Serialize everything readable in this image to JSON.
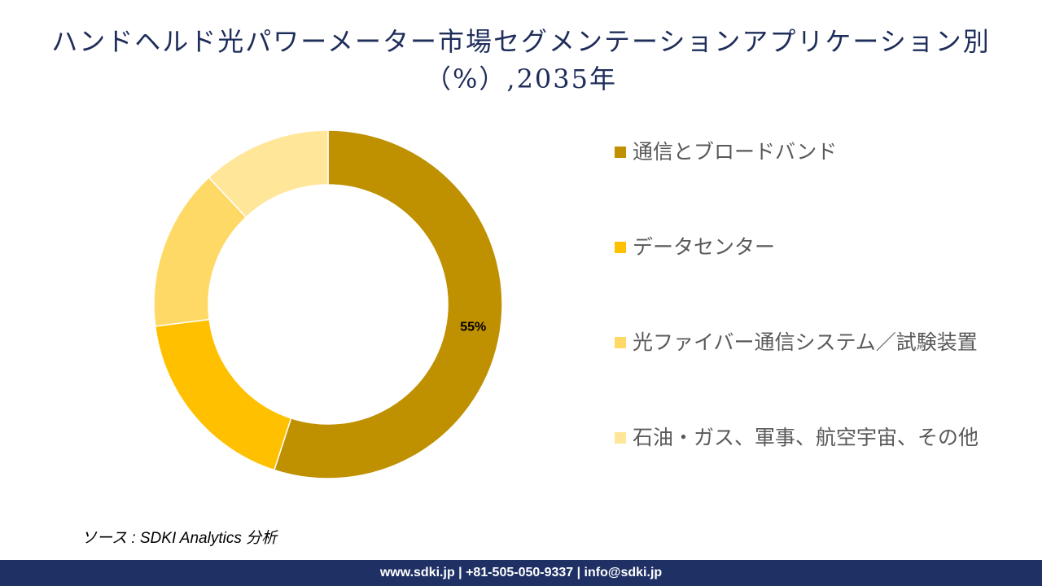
{
  "chart_data": {
    "type": "donut",
    "title": "ハンドヘルド光パワーメーター市場セグメンテーションアプリケーション別（%）,2035年",
    "categories": [
      "通信とブロードバンド",
      "データセンター",
      "光ファイバー通信システム／試験装置",
      "石油・ガス、軍事、航空宇宙、その他"
    ],
    "values": [
      55,
      18,
      15,
      12
    ],
    "value_labels": [
      "55%",
      null,
      null,
      null
    ],
    "colors": [
      "#bf9000",
      "#ffc000",
      "#ffd966",
      "#ffe699"
    ]
  },
  "source": "ソース : SDKI Analytics 分析",
  "footer": "www.sdki.jp | +81-505-050-9337 | info@sdki.jp"
}
